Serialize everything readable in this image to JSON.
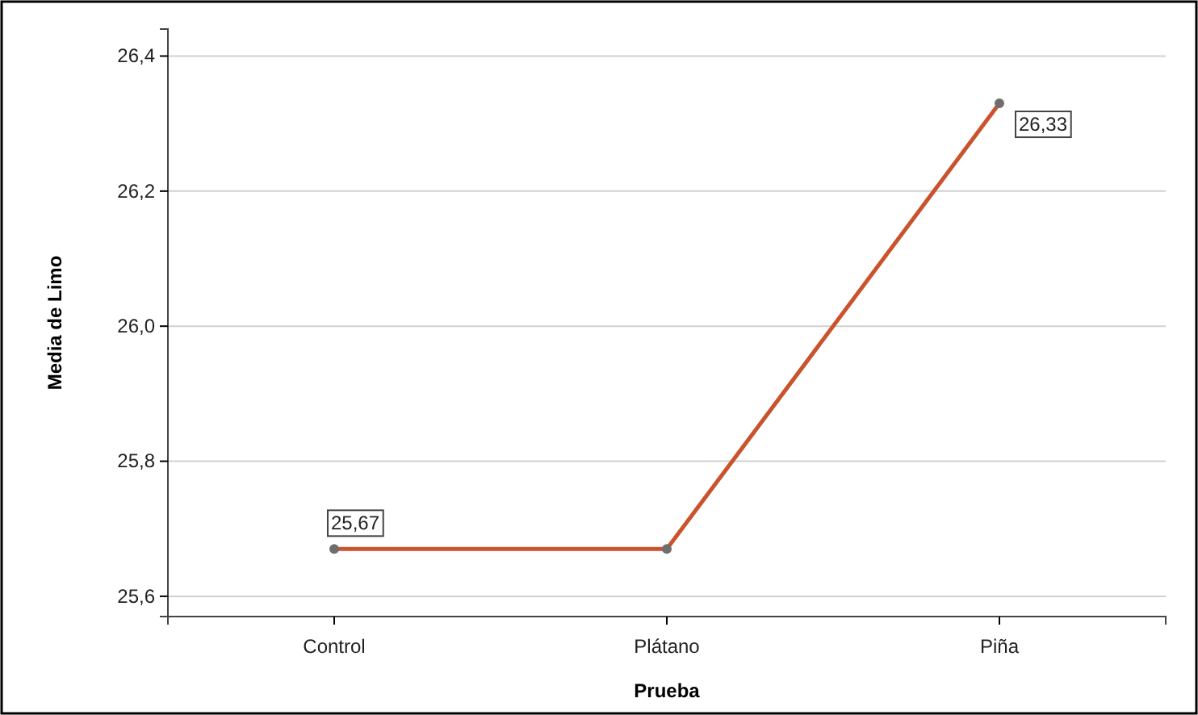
{
  "chart_data": {
    "type": "line",
    "xlabel": "Prueba",
    "ylabel": "Media de Limo",
    "categories": [
      "Control",
      "Plátano",
      "Piña"
    ],
    "series": [
      {
        "color": "#c9532c",
        "values": [
          25.67,
          25.67,
          26.33
        ],
        "value_labels": [
          "25,67",
          null,
          "26,33"
        ]
      }
    ],
    "ylim": [
      25.57,
      26.44
    ],
    "yticks": [
      {
        "value": 25.6,
        "label": "25,6"
      },
      {
        "value": 25.8,
        "label": "25,8"
      },
      {
        "value": 26.0,
        "label": "26,0"
      },
      {
        "value": 26.2,
        "label": "26,2"
      },
      {
        "value": 26.4,
        "label": "26,4"
      }
    ],
    "grid": "y",
    "marker": "circle"
  }
}
